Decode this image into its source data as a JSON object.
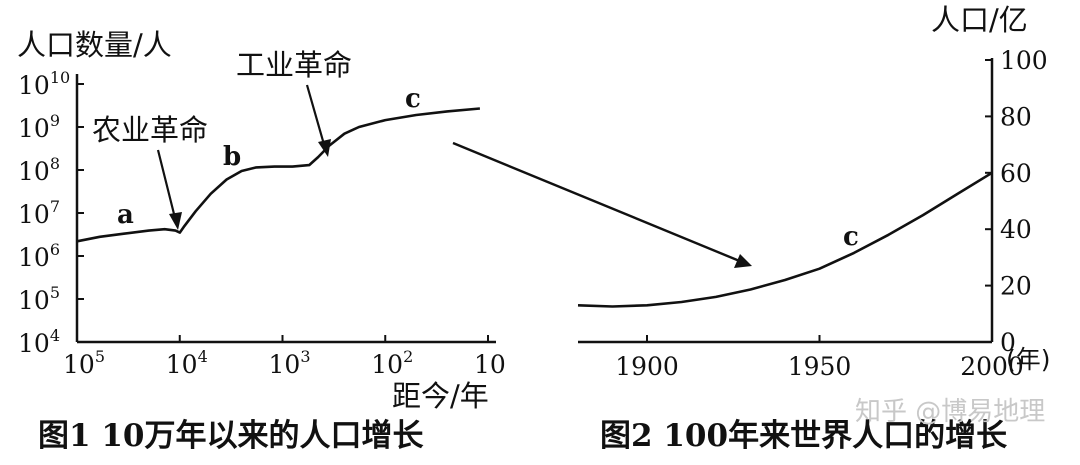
{
  "watermark": "知乎 @博易地理",
  "chart_data": [
    {
      "id": "fig1",
      "type": "line",
      "title": "图1 10万年以来的人口增长",
      "xlabel": "距今/年",
      "ylabel": "人口数量/人",
      "x_scale": "log-reversed",
      "y_scale": "log",
      "xlim": [
        100000,
        10
      ],
      "ylim": [
        10000,
        10000000000
      ],
      "x_ticks": [
        {
          "value": 100000,
          "base": "10",
          "exp": "5"
        },
        {
          "value": 10000,
          "base": "10",
          "exp": "4"
        },
        {
          "value": 1000,
          "base": "10",
          "exp": "3"
        },
        {
          "value": 100,
          "base": "10",
          "exp": "2"
        },
        {
          "value": 10,
          "base": "10",
          "exp": ""
        }
      ],
      "y_ticks": [
        {
          "value": 10000,
          "base": "10",
          "exp": "4"
        },
        {
          "value": 100000,
          "base": "10",
          "exp": "5"
        },
        {
          "value": 1000000,
          "base": "10",
          "exp": "6"
        },
        {
          "value": 10000000,
          "base": "10",
          "exp": "7"
        },
        {
          "value": 100000000,
          "base": "10",
          "exp": "8"
        },
        {
          "value": 1000000000,
          "base": "10",
          "exp": "9"
        },
        {
          "value": 10000000000,
          "base": "10",
          "exp": "10"
        }
      ],
      "series": [
        {
          "points": [
            [
              100000,
              2200000
            ],
            [
              60000,
              2800000
            ],
            [
              35000,
              3300000
            ],
            [
              20000,
              3900000
            ],
            [
              14000,
              4200000
            ],
            [
              11000,
              3900000
            ],
            [
              10000,
              3500000
            ],
            [
              9000,
              5000000
            ],
            [
              7000,
              11000000
            ],
            [
              5000,
              28000000
            ],
            [
              3500,
              60000000
            ],
            [
              2500,
              95000000
            ],
            [
              1800,
              115000000
            ],
            [
              1200,
              120000000
            ],
            [
              800,
              120000000
            ],
            [
              550,
              130000000
            ],
            [
              450,
              200000000
            ],
            [
              350,
              370000000
            ],
            [
              250,
              700000000
            ],
            [
              180,
              1000000000
            ],
            [
              100,
              1450000000
            ],
            [
              50,
              1900000000
            ],
            [
              25,
              2300000000
            ],
            [
              12,
              2700000000
            ]
          ]
        }
      ],
      "annotations": [
        {
          "text": "农业革命",
          "x": 10000,
          "y": 3500000
        },
        {
          "text": "工业革命",
          "x": 300,
          "y": 130000000
        }
      ],
      "point_labels": [
        {
          "text": "a",
          "x": 30000,
          "y": 3000000
        },
        {
          "text": "b",
          "x": 3000,
          "y": 60000000
        },
        {
          "text": "c",
          "x": 110,
          "y": 2500000000
        }
      ]
    },
    {
      "id": "fig2",
      "type": "line",
      "title": "图2 100年来世界人口的增长",
      "xlabel": "(年)",
      "ylabel": "人口/亿",
      "xlim": [
        1880,
        2000
      ],
      "ylim": [
        0,
        100
      ],
      "x_ticks": [
        1900,
        1950,
        2000
      ],
      "y_ticks": [
        0,
        20,
        40,
        60,
        80,
        100
      ],
      "series": [
        {
          "points": [
            [
              1880,
              13
            ],
            [
              1890,
              12.6
            ],
            [
              1900,
              13
            ],
            [
              1910,
              14.2
            ],
            [
              1920,
              16
            ],
            [
              1930,
              18.6
            ],
            [
              1940,
              22
            ],
            [
              1950,
              26
            ],
            [
              1960,
              31.6
            ],
            [
              1970,
              38
            ],
            [
              1980,
              45
            ],
            [
              1990,
              52.5
            ],
            [
              2000,
              60
            ]
          ]
        }
      ],
      "point_labels": [
        {
          "text": "c",
          "x": 1961,
          "y": 32
        }
      ]
    }
  ]
}
